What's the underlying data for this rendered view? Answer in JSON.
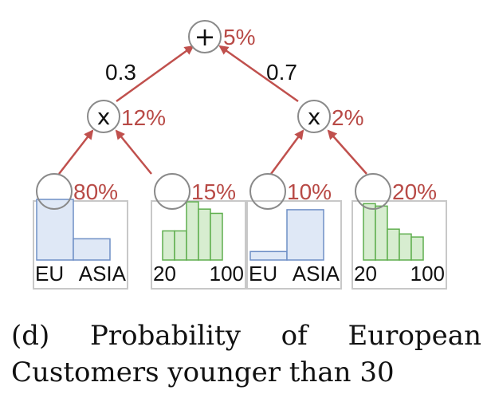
{
  "root": {
    "op": "+",
    "percent": "5%"
  },
  "edge_weights": {
    "left": "0.3",
    "right": "0.7"
  },
  "products": [
    {
      "op": "x",
      "percent": "12%"
    },
    {
      "op": "x",
      "percent": "2%"
    }
  ],
  "leaves": [
    {
      "percent": "80%",
      "kind": "categorical",
      "color": "#6f8fc6",
      "fill": "#dfe8f6",
      "labels": [
        "EU",
        "ASIA"
      ],
      "bars": [
        1.0,
        0.35
      ]
    },
    {
      "percent": "15%",
      "kind": "numeric",
      "color": "#5fae4e",
      "fill": "#d7edd0",
      "labels": [
        "20",
        "100"
      ],
      "bars": [
        0.48,
        0.48,
        0.96,
        0.84,
        0.77
      ]
    },
    {
      "percent": "10%",
      "kind": "categorical",
      "color": "#6f8fc6",
      "fill": "#dfe8f6",
      "labels": [
        "EU",
        "ASIA"
      ],
      "bars": [
        0.14,
        0.83
      ]
    },
    {
      "percent": "20%",
      "kind": "numeric",
      "color": "#5fae4e",
      "fill": "#d7edd0",
      "labels": [
        "20",
        "100"
      ],
      "bars": [
        0.93,
        0.89,
        0.51,
        0.43,
        0.38
      ]
    }
  ],
  "colors": {
    "arrow": "#c0504d",
    "percent_text": "#b84a46",
    "node_stroke": "#8a8a8a",
    "box_stroke": "#c8c8c8"
  },
  "caption": {
    "line1_words": [
      "(d)",
      "Probability",
      "of",
      "European"
    ],
    "line2": "Customers younger than 30"
  }
}
